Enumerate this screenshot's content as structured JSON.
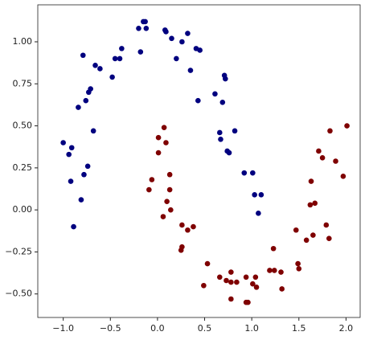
{
  "chart_data": {
    "type": "scatter",
    "xlim": [
      -1.27,
      2.15
    ],
    "ylim": [
      -0.64,
      1.22
    ],
    "xticks": [
      {
        "value": -1.0,
        "label": "−1.0"
      },
      {
        "value": -0.5,
        "label": "−0.5"
      },
      {
        "value": 0,
        "label": "0.0"
      },
      {
        "value": 0.5,
        "label": "0.5"
      },
      {
        "value": 1.0,
        "label": "1.0"
      },
      {
        "value": 1.5,
        "label": "1.5"
      },
      {
        "value": 2.0,
        "label": "2.0"
      }
    ],
    "yticks": [
      {
        "value": -0.5,
        "label": "−0.50"
      },
      {
        "value": -0.25,
        "label": "−0.25"
      },
      {
        "value": 0,
        "label": "0.00"
      },
      {
        "value": 0.25,
        "label": "0.25"
      },
      {
        "value": 0.5,
        "label": "0.50"
      },
      {
        "value": 0.75,
        "label": "0.75"
      },
      {
        "value": 1.0,
        "label": "1.00"
      }
    ],
    "series": [
      {
        "color": "#00007f",
        "x": [
          -1.0,
          -0.94,
          -0.91,
          -0.92,
          -0.89,
          -0.81,
          -0.78,
          -0.74,
          -0.84,
          -0.79,
          -0.76,
          -0.73,
          -0.71,
          -0.68,
          -0.66,
          -0.61,
          -0.48,
          -0.45,
          -0.4,
          -0.38,
          -0.2,
          -0.18,
          -0.15,
          -0.13,
          -0.12,
          0.08,
          0.09,
          0.15,
          0.26,
          0.2,
          0.32,
          0.35,
          0.41,
          0.45,
          0.43,
          0.61,
          0.71,
          0.72,
          0.69,
          0.66,
          0.67,
          0.74,
          0.76,
          0.82,
          0.92,
          1.01,
          1.03,
          1.1,
          1.07
        ],
        "y": [
          0.4,
          0.33,
          0.37,
          0.17,
          -0.1,
          0.06,
          0.21,
          0.26,
          0.61,
          0.92,
          0.65,
          0.7,
          0.72,
          0.47,
          0.86,
          0.84,
          0.79,
          0.9,
          0.9,
          0.96,
          1.08,
          0.94,
          1.12,
          1.12,
          1.08,
          1.07,
          1.06,
          1.02,
          1.0,
          0.9,
          1.05,
          0.83,
          0.96,
          0.95,
          0.65,
          0.69,
          0.8,
          0.78,
          0.64,
          0.46,
          0.42,
          0.35,
          0.34,
          0.47,
          0.22,
          0.22,
          0.09,
          0.09,
          -0.02
        ]
      },
      {
        "color": "#7f0000",
        "x": [
          -0.09,
          -0.06,
          0.01,
          0.01,
          0.07,
          0.09,
          0.06,
          0.1,
          0.13,
          0.13,
          0.14,
          0.25,
          0.26,
          0.26,
          0.32,
          0.38,
          0.49,
          0.53,
          0.66,
          0.73,
          0.78,
          0.78,
          0.84,
          0.78,
          0.94,
          0.94,
          0.96,
          1.01,
          1.04,
          1.05,
          1.19,
          1.24,
          1.23,
          1.31,
          1.32,
          1.47,
          1.49,
          1.5,
          1.58,
          1.65,
          1.62,
          1.67,
          1.63,
          1.71,
          1.75,
          1.79,
          1.82,
          1.83,
          1.89,
          1.97,
          2.01
        ],
        "y": [
          0.12,
          0.18,
          0.34,
          0.43,
          0.49,
          0.4,
          -0.04,
          0.05,
          0.21,
          0.12,
          0.0,
          -0.24,
          -0.22,
          -0.09,
          -0.12,
          -0.1,
          -0.45,
          -0.32,
          -0.4,
          -0.42,
          -0.37,
          -0.43,
          -0.43,
          -0.53,
          -0.4,
          -0.55,
          -0.55,
          -0.44,
          -0.4,
          -0.46,
          -0.36,
          -0.36,
          -0.23,
          -0.37,
          -0.47,
          -0.12,
          -0.32,
          -0.35,
          -0.18,
          -0.15,
          0.03,
          0.04,
          0.17,
          0.35,
          0.31,
          -0.09,
          -0.17,
          0.47,
          0.29,
          0.2,
          0.5
        ]
      }
    ]
  }
}
